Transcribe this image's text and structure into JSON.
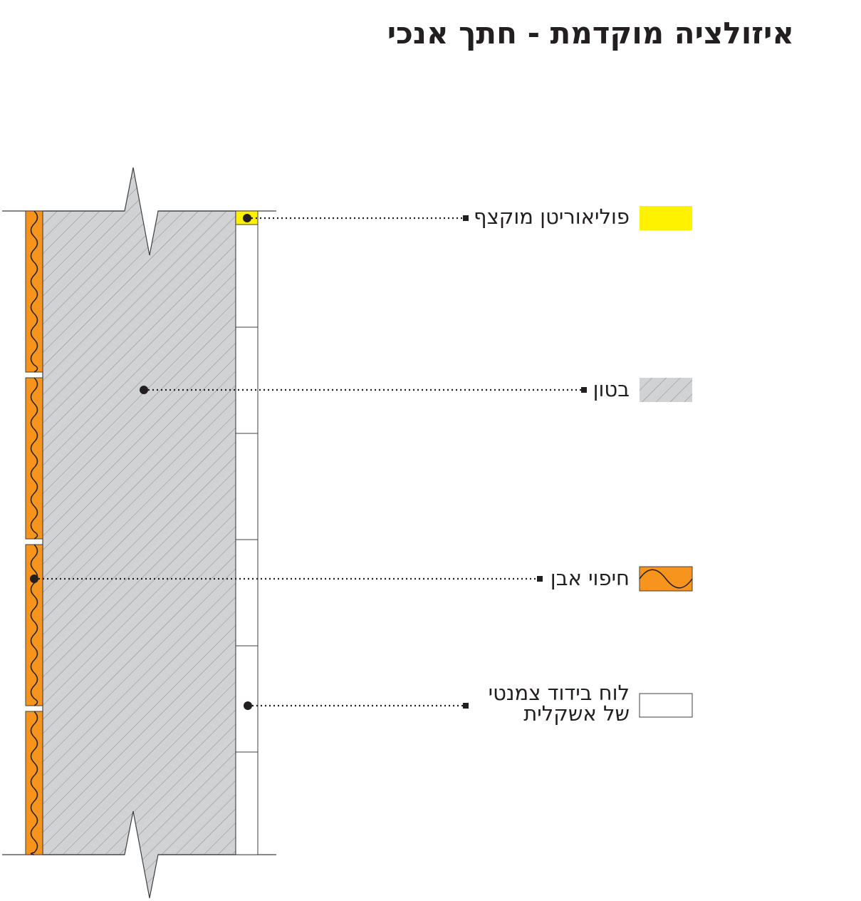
{
  "title": "איזולציה מוקדמת - חתך אנכי",
  "legend": [
    {
      "label": "פוליאוריטן מוקצף",
      "color": "#fff200",
      "pattern": "solid"
    },
    {
      "label": "בטון",
      "color": "#d1d2d4",
      "pattern": "diagonal-hatch"
    },
    {
      "label": "חיפוי אבן",
      "color": "#f7941d",
      "pattern": "wave"
    },
    {
      "label_line1": "לוח בידוד צמנטי",
      "label_line2": "של אשקלית",
      "color": "#ffffff",
      "pattern": "solid"
    }
  ]
}
